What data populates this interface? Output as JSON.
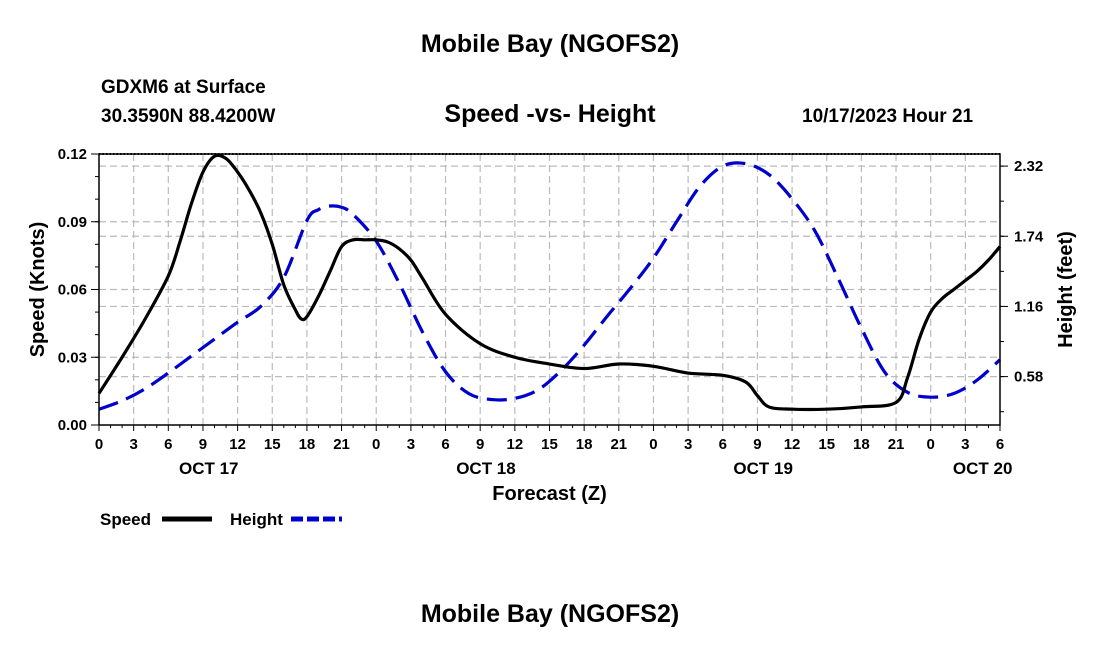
{
  "page": {
    "title": "Mobile Bay (NGOFS2)",
    "station": "GDXM6 at Surface",
    "coordinates": "30.3590N  88.4200W",
    "subtitle": "Speed -vs- Height",
    "timestamp": "10/17/2023 Hour 21",
    "bottom_title": "Mobile Bay (NGOFS2)"
  },
  "colors": {
    "speed": "#000000",
    "height": "#0000cc",
    "grid": "#bbbbbb"
  },
  "chart_data": {
    "type": "line",
    "title": "Speed -vs- Height",
    "xlabel": "Forecast (Z)",
    "x_unit": "hours since OCT 17 00Z",
    "xlim": [
      0,
      78
    ],
    "x_ticks": [
      0,
      3,
      6,
      9,
      12,
      15,
      18,
      21,
      24,
      27,
      30,
      33,
      36,
      39,
      42,
      45,
      48,
      51,
      54,
      57,
      60,
      63,
      66,
      69,
      72,
      75,
      78
    ],
    "x_tick_labels": [
      "0",
      "3",
      "6",
      "9",
      "12",
      "15",
      "18",
      "21",
      "0",
      "3",
      "6",
      "9",
      "12",
      "15",
      "18",
      "21",
      "0",
      "3",
      "6",
      "9",
      "12",
      "15",
      "18",
      "21",
      "0",
      "3",
      "6"
    ],
    "date_labels": [
      {
        "x": 9.5,
        "label": "OCT 17"
      },
      {
        "x": 33.5,
        "label": "OCT 18"
      },
      {
        "x": 57.5,
        "label": "OCT 19"
      },
      {
        "x": 76.5,
        "label": "OCT 20"
      }
    ],
    "y_left": {
      "label": "Speed (Knots)",
      "lim": [
        0,
        0.12
      ],
      "ticks": [
        0,
        0.03,
        0.06,
        0.09,
        0.12
      ],
      "tick_labels": [
        "0.00",
        "0.03",
        "0.06",
        "0.09",
        "0.12"
      ]
    },
    "y_right": {
      "label": "Height (feet)",
      "lim": [
        0.18,
        2.42
      ],
      "ticks": [
        0.58,
        1.16,
        1.74,
        2.32
      ],
      "tick_labels": [
        "0.58",
        "1.16",
        "1.74",
        "2.32"
      ]
    },
    "legend": [
      {
        "name": "Speed",
        "style": "solid"
      },
      {
        "name": "Height",
        "style": "dashed"
      }
    ],
    "legend_position": "bottom-left",
    "grid": true,
    "series": [
      {
        "name": "Speed",
        "axis": "left",
        "style": "solid",
        "x": [
          0,
          2,
          4,
          6,
          7,
          8,
          9,
          10,
          11,
          12,
          13,
          14,
          15,
          16,
          17,
          17.5,
          18,
          19,
          20,
          21,
          22,
          23,
          24,
          25,
          26,
          27,
          28,
          30,
          33,
          36,
          39,
          42,
          45,
          48,
          51,
          54,
          56,
          57,
          58,
          60,
          63,
          66,
          69,
          70,
          71,
          72,
          73,
          74,
          75,
          76,
          77,
          78
        ],
        "values": [
          0.014,
          0.03,
          0.047,
          0.066,
          0.081,
          0.098,
          0.112,
          0.119,
          0.118,
          0.112,
          0.104,
          0.094,
          0.08,
          0.062,
          0.051,
          0.047,
          0.048,
          0.057,
          0.068,
          0.079,
          0.082,
          0.082,
          0.082,
          0.081,
          0.078,
          0.073,
          0.065,
          0.049,
          0.036,
          0.03,
          0.027,
          0.025,
          0.027,
          0.026,
          0.023,
          0.022,
          0.019,
          0.013,
          0.008,
          0.007,
          0.007,
          0.008,
          0.01,
          0.021,
          0.038,
          0.05,
          0.056,
          0.06,
          0.064,
          0.068,
          0.073,
          0.079
        ]
      },
      {
        "name": "Height",
        "axis": "right",
        "style": "dashed",
        "x": [
          0,
          2,
          4,
          6,
          8,
          10,
          12,
          14,
          16,
          18,
          19,
          20,
          21,
          22,
          24,
          26,
          28,
          30,
          32,
          34,
          36,
          38,
          40,
          42,
          44,
          46,
          48,
          50,
          52,
          54,
          56,
          58,
          60,
          62,
          64,
          66,
          68,
          70,
          72,
          74,
          76,
          78
        ],
        "values": [
          0.31,
          0.38,
          0.48,
          0.61,
          0.75,
          0.89,
          1.03,
          1.16,
          1.4,
          1.87,
          1.96,
          1.99,
          1.98,
          1.92,
          1.7,
          1.35,
          0.95,
          0.62,
          0.44,
          0.39,
          0.4,
          0.47,
          0.63,
          0.84,
          1.08,
          1.31,
          1.56,
          1.86,
          2.15,
          2.32,
          2.34,
          2.25,
          2.05,
          1.78,
          1.39,
          0.98,
          0.62,
          0.45,
          0.41,
          0.44,
          0.55,
          0.72
        ]
      }
    ]
  }
}
